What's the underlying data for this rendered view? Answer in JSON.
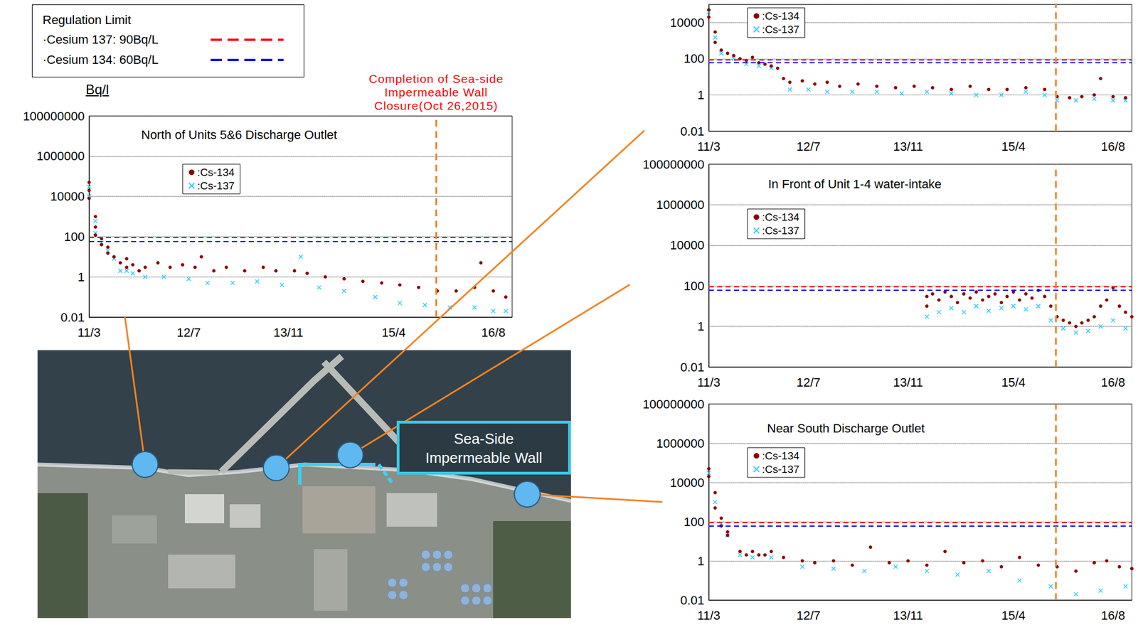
{
  "regulation_limit": {
    "title": "Regulation Limit",
    "lines": [
      {
        "label": "·Cesium 137: 90Bq/L",
        "value": 90,
        "color": "#ff0000"
      },
      {
        "label": "·Cesium 134: 60Bq/L",
        "value": 60,
        "color": "#0000ff"
      }
    ]
  },
  "annotation": {
    "text": "Completion of Sea-side\nImpermeable Wall\nClosure(Oct 26,2015)",
    "x": "2015-10-26",
    "color": "#ff0000"
  },
  "map_label": "Sea-Side\nImpermeable Wall",
  "chart_data": [
    {
      "type": "scatter",
      "title": "North of Units 5&6 Discharge Outlet",
      "y_label": "Bq/l",
      "log": "y",
      "grid": true,
      "legend": "upper left",
      "xlim": [
        "2011-03",
        "2016-11"
      ],
      "xticks": [
        {
          "value": "2011-03",
          "label": "11/3"
        },
        {
          "value": "2012-07",
          "label": "12/7"
        },
        {
          "value": "2013-11",
          "label": "13/11"
        },
        {
          "value": "2015-04",
          "label": "15/4"
        },
        {
          "value": "2016-08",
          "label": "16/8"
        }
      ],
      "ylim": [
        0.01,
        100000000
      ],
      "yticks": [
        0.01,
        1,
        100,
        10000,
        1000000,
        100000000
      ],
      "series": [
        {
          "name": ":Cs-134",
          "color": "#8b0000",
          "marker": "circle",
          "x": [
            "2011-03",
            "2011-03",
            "2011-03",
            "2011-04",
            "2011-04",
            "2011-04",
            "2011-05",
            "2011-05",
            "2011-06",
            "2011-06",
            "2011-07",
            "2011-08",
            "2011-09",
            "2011-09",
            "2011-10",
            "2011-11",
            "2011-12",
            "2012-02",
            "2012-04",
            "2012-06",
            "2012-08",
            "2012-09",
            "2012-11",
            "2013-01",
            "2013-04",
            "2013-07",
            "2013-09",
            "2013-12",
            "2014-02",
            "2014-05",
            "2014-08",
            "2014-11",
            "2015-02",
            "2015-05",
            "2015-08",
            "2015-11",
            "2016-02",
            "2016-05",
            "2016-06",
            "2016-08",
            "2016-10"
          ],
          "values": [
            50000,
            20000,
            8000,
            1000,
            300,
            120,
            80,
            40,
            30,
            15,
            10,
            5,
            8,
            3,
            4,
            2,
            3,
            5,
            3,
            4,
            3,
            10,
            2,
            3,
            2,
            3,
            2,
            2,
            1.5,
            1,
            0.8,
            0.6,
            0.5,
            0.4,
            0.3,
            0.2,
            0.2,
            0.3,
            5,
            0.2,
            0.1
          ]
        },
        {
          "name": ":Cs-137",
          "color": "#33ccff",
          "marker": "x",
          "x": [
            "2011-03",
            "2011-03",
            "2011-04",
            "2011-04",
            "2011-05",
            "2011-06",
            "2011-07",
            "2011-08",
            "2011-09",
            "2011-10",
            "2011-12",
            "2012-03",
            "2012-07",
            "2012-10",
            "2013-02",
            "2013-06",
            "2013-10",
            "2014-01",
            "2014-04",
            "2014-08",
            "2015-01",
            "2015-05",
            "2015-09",
            "2016-01",
            "2016-05",
            "2016-08",
            "2016-10"
          ],
          "values": [
            30000,
            10000,
            600,
            150,
            50,
            20,
            8,
            2,
            2,
            1.5,
            1,
            1,
            0.8,
            0.5,
            0.5,
            0.6,
            0.4,
            10,
            0.3,
            0.2,
            0.1,
            0.05,
            0.04,
            0.03,
            0.03,
            0.02,
            0.02
          ]
        }
      ]
    },
    {
      "type": "scatter",
      "log": "y",
      "grid": true,
      "legend": "upper left",
      "xlim": [
        "2011-03",
        "2016-11"
      ],
      "xticks": [
        {
          "value": "2011-03",
          "label": "11/3"
        },
        {
          "value": "2012-07",
          "label": "12/7"
        },
        {
          "value": "2013-11",
          "label": "13/11"
        },
        {
          "value": "2015-04",
          "label": "15/4"
        },
        {
          "value": "2016-08",
          "label": "16/8"
        }
      ],
      "ylim": [
        0.01,
        100000
      ],
      "yticks": [
        0.01,
        1,
        100,
        10000
      ],
      "series": [
        {
          "name": ":Cs-134",
          "color": "#8b0000",
          "marker": "circle",
          "x": [
            "2011-03",
            "2011-03",
            "2011-04",
            "2011-04",
            "2011-05",
            "2011-06",
            "2011-07",
            "2011-08",
            "2011-09",
            "2011-10",
            "2011-11",
            "2011-12",
            "2012-01",
            "2012-02",
            "2012-03",
            "2012-04",
            "2012-06",
            "2012-08",
            "2012-10",
            "2012-12",
            "2013-03",
            "2013-06",
            "2013-09",
            "2013-12",
            "2014-03",
            "2014-06",
            "2014-09",
            "2014-12",
            "2015-03",
            "2015-06",
            "2015-09",
            "2015-11",
            "2016-01",
            "2016-03",
            "2016-05",
            "2016-06",
            "2016-08",
            "2016-10"
          ],
          "values": [
            50000,
            20000,
            3000,
            800,
            300,
            200,
            150,
            100,
            80,
            120,
            60,
            50,
            40,
            30,
            8,
            5,
            6,
            4,
            5,
            3,
            4,
            3,
            2.5,
            3,
            2.5,
            2,
            3,
            2,
            2,
            2.5,
            2,
            0.8,
            0.7,
            0.8,
            1,
            8,
            0.8,
            0.7
          ]
        },
        {
          "name": ":Cs-137",
          "color": "#33ccff",
          "marker": "x",
          "x": [
            "2011-03",
            "2011-04",
            "2011-05",
            "2011-07",
            "2011-09",
            "2011-11",
            "2012-01",
            "2012-04",
            "2012-07",
            "2012-10",
            "2013-02",
            "2013-06",
            "2013-10",
            "2014-02",
            "2014-06",
            "2014-10",
            "2015-02",
            "2015-06",
            "2015-09",
            "2015-11",
            "2016-02",
            "2016-05",
            "2016-08",
            "2016-10"
          ],
          "values": [
            40000,
            1500,
            200,
            100,
            50,
            40,
            30,
            2,
            2,
            1.5,
            1.5,
            1.5,
            1.2,
            1.5,
            1.2,
            1,
            1,
            1.5,
            1,
            0.5,
            0.5,
            0.6,
            0.5,
            0.5
          ]
        }
      ]
    },
    {
      "type": "scatter",
      "title": "In Front of Unit 1-4 water-intake",
      "log": "y",
      "grid": true,
      "legend": "upper left",
      "xlim": [
        "2011-03",
        "2016-11"
      ],
      "xticks": [
        {
          "value": "2011-03",
          "label": "11/3"
        },
        {
          "value": "2012-07",
          "label": "12/7"
        },
        {
          "value": "2013-11",
          "label": "13/11"
        },
        {
          "value": "2015-04",
          "label": "15/4"
        },
        {
          "value": "2016-08",
          "label": "16/8"
        }
      ],
      "ylim": [
        0.01,
        100000000
      ],
      "yticks": [
        0.01,
        1,
        100,
        10000,
        1000000,
        100000000
      ],
      "series": [
        {
          "name": ":Cs-134",
          "color": "#8b0000",
          "marker": "circle",
          "x": [
            "2014-02",
            "2014-02",
            "2014-03",
            "2014-04",
            "2014-05",
            "2014-06",
            "2014-07",
            "2014-08",
            "2014-09",
            "2014-10",
            "2014-11",
            "2014-12",
            "2015-01",
            "2015-02",
            "2015-03",
            "2015-04",
            "2015-05",
            "2015-06",
            "2015-07",
            "2015-08",
            "2015-09",
            "2015-10",
            "2015-11",
            "2015-12",
            "2016-01",
            "2016-02",
            "2016-03",
            "2016-04",
            "2016-05",
            "2016-06",
            "2016-07",
            "2016-08",
            "2016-09",
            "2016-10",
            "2016-11"
          ],
          "values": [
            30,
            10,
            40,
            20,
            50,
            30,
            15,
            40,
            25,
            50,
            20,
            30,
            40,
            15,
            30,
            50,
            20,
            40,
            25,
            60,
            30,
            10,
            3,
            2,
            1.5,
            1,
            1.5,
            2,
            3,
            10,
            20,
            80,
            10,
            5,
            3
          ]
        },
        {
          "name": ":Cs-137",
          "color": "#33ccff",
          "marker": "x",
          "x": [
            "2014-02",
            "2014-04",
            "2014-06",
            "2014-08",
            "2014-10",
            "2014-12",
            "2015-02",
            "2015-04",
            "2015-06",
            "2015-08",
            "2015-10",
            "2015-12",
            "2016-02",
            "2016-04",
            "2016-06",
            "2016-08",
            "2016-10"
          ],
          "values": [
            3,
            5,
            8,
            5,
            10,
            6,
            8,
            10,
            7,
            10,
            2,
            0.8,
            0.5,
            0.6,
            1,
            2,
            0.8
          ]
        }
      ]
    },
    {
      "type": "scatter",
      "title": "Near South Discharge Outlet",
      "log": "y",
      "grid": true,
      "legend": "upper left",
      "xlim": [
        "2011-03",
        "2016-11"
      ],
      "xticks": [
        {
          "value": "2011-03",
          "label": "11/3"
        },
        {
          "value": "2012-07",
          "label": "12/7"
        },
        {
          "value": "2013-11",
          "label": "13/11"
        },
        {
          "value": "2015-04",
          "label": "15/4"
        },
        {
          "value": "2016-08",
          "label": "16/8"
        }
      ],
      "ylim": [
        0.01,
        100000000
      ],
      "yticks": [
        0.01,
        1,
        100,
        10000,
        1000000,
        100000000
      ],
      "series": [
        {
          "name": ":Cs-134",
          "color": "#8b0000",
          "marker": "circle",
          "x": [
            "2011-03",
            "2011-03",
            "2011-04",
            "2011-04",
            "2011-05",
            "2011-05",
            "2011-06",
            "2011-06",
            "2011-08",
            "2011-09",
            "2011-10",
            "2011-11",
            "2011-12",
            "2012-01",
            "2012-03",
            "2012-06",
            "2012-08",
            "2012-11",
            "2013-02",
            "2013-05",
            "2013-08",
            "2013-11",
            "2014-02",
            "2014-05",
            "2014-08",
            "2014-11",
            "2015-02",
            "2015-05",
            "2015-08",
            "2015-11",
            "2016-02",
            "2016-05",
            "2016-07",
            "2016-09",
            "2016-11"
          ],
          "values": [
            50000,
            20000,
            3000,
            500,
            150,
            60,
            30,
            20,
            3,
            2,
            3,
            2,
            2,
            3,
            1.5,
            1,
            0.8,
            1,
            0.6,
            5,
            0.8,
            1,
            0.6,
            3,
            0.8,
            1,
            0.5,
            1.5,
            0.6,
            0.5,
            0.3,
            0.8,
            1,
            0.5,
            0.4
          ]
        },
        {
          "name": ":Cs-137",
          "color": "#33ccff",
          "marker": "x",
          "x": [
            "2011-03",
            "2011-04",
            "2011-05",
            "2011-06",
            "2011-08",
            "2011-10",
            "2012-01",
            "2012-06",
            "2012-11",
            "2013-04",
            "2013-09",
            "2014-02",
            "2014-07",
            "2014-12",
            "2015-05",
            "2015-10",
            "2016-02",
            "2016-06",
            "2016-10"
          ],
          "values": [
            30000,
            1000,
            80,
            20,
            2,
            1.5,
            1.5,
            0.5,
            0.4,
            0.3,
            0.5,
            0.3,
            0.2,
            0.3,
            0.1,
            0.05,
            0.02,
            0.03,
            0.05
          ]
        }
      ]
    }
  ]
}
